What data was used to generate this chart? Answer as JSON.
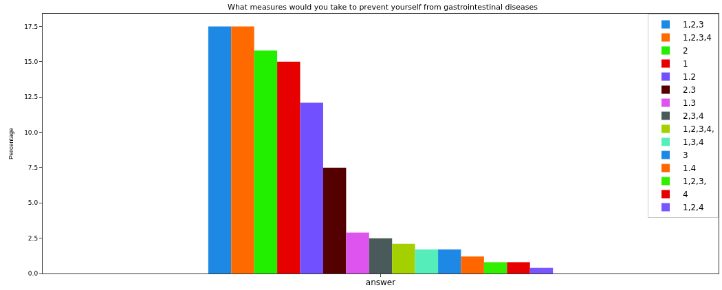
{
  "chart_data": {
    "type": "bar",
    "title": "What measures would you take to prevent yourself from gastrointestinal diseases",
    "xlabel": "answer",
    "ylabel": "Percentage",
    "categories": [
      null
    ],
    "series": [
      {
        "name": "1,2,3",
        "color": "#1e88e5",
        "values": [
          17.5
        ]
      },
      {
        "name": "1,2,3,4",
        "color": "#ff6a00",
        "values": [
          17.5
        ]
      },
      {
        "name": "2",
        "color": "#22ee00",
        "values": [
          15.8
        ]
      },
      {
        "name": "1",
        "color": "#e60000",
        "values": [
          15.0
        ]
      },
      {
        "name": "1.2",
        "color": "#7050ff",
        "values": [
          12.1
        ]
      },
      {
        "name": "2.3",
        "color": "#550000",
        "values": [
          7.5
        ]
      },
      {
        "name": "1.3",
        "color": "#dd55ee",
        "values": [
          2.9
        ]
      },
      {
        "name": "2,3,4",
        "color": "#4a5a5a",
        "values": [
          2.5
        ]
      },
      {
        "name": "1,2,3,4,",
        "color": "#a5d000",
        "values": [
          2.1
        ]
      },
      {
        "name": "1,3,4",
        "color": "#55eebb",
        "values": [
          1.7
        ]
      },
      {
        "name": "3",
        "color": "#1e88e5",
        "values": [
          1.7
        ]
      },
      {
        "name": "1.4",
        "color": "#ff6600",
        "values": [
          1.2
        ]
      },
      {
        "name": "1,2,3,",
        "color": "#33ee00",
        "values": [
          0.8
        ]
      },
      {
        "name": "4",
        "color": "#e80000",
        "values": [
          0.8
        ]
      },
      {
        "name": "1,2,4",
        "color": "#7755ff",
        "values": [
          0.4
        ]
      }
    ],
    "ylim": [
      0,
      18.4
    ],
    "yticks": [
      {
        "value": 0,
        "label": "0.0"
      },
      {
        "value": 2.5,
        "label": "2.5"
      },
      {
        "value": 5,
        "label": "5.0"
      },
      {
        "value": 7.5,
        "label": "7.5"
      },
      {
        "value": 10,
        "label": "10.0"
      },
      {
        "value": 12.5,
        "label": "12.5"
      },
      {
        "value": 15,
        "label": "15.0"
      },
      {
        "value": 17.5,
        "label": "17.5"
      }
    ],
    "grid": false,
    "legend": "top right"
  }
}
